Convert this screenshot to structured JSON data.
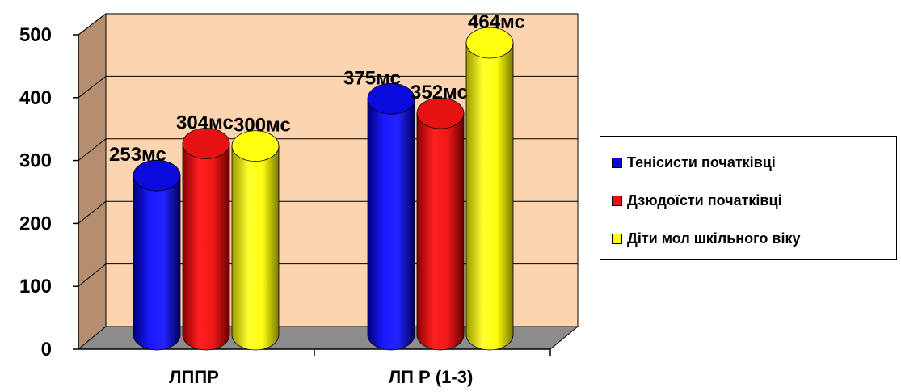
{
  "chart_data": {
    "type": "bar",
    "categories": [
      "ЛППР",
      "ЛП Р (1-3)"
    ],
    "series": [
      {
        "name": "Тенісисти початківці",
        "values": [
          253,
          375
        ],
        "labels": [
          "253мс",
          "375мс"
        ],
        "color": "#0a0adc"
      },
      {
        "name": "Дзюдоїсти початківці",
        "values": [
          304,
          352
        ],
        "labels": [
          "304мс",
          "352мс"
        ],
        "color": "#e41212"
      },
      {
        "name": "Діти мол шкільного віку",
        "values": [
          300,
          464
        ],
        "labels": [
          "300мс",
          "464мс"
        ],
        "color": "#ffff10"
      }
    ],
    "yticks": [
      "0",
      "100",
      "200",
      "300",
      "400",
      "500"
    ],
    "ylim": [
      0,
      500
    ],
    "grid": true,
    "legend_position": "right",
    "wall_color": "#fcd5b0",
    "side_wall_color": "#b58e70",
    "floor_color": "#8c8c8c"
  }
}
